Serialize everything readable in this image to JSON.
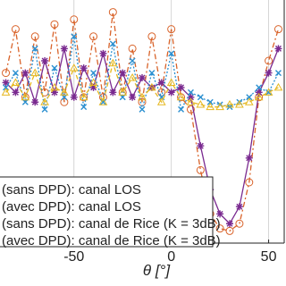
{
  "chart_data": {
    "type": "line",
    "x": [
      -85,
      -80,
      -75,
      -70,
      -65,
      -60,
      -55,
      -50,
      -45,
      -40,
      -35,
      -30,
      -25,
      -20,
      -15,
      -10,
      -5,
      0,
      5,
      10,
      15,
      20,
      25,
      30,
      35,
      40,
      45,
      50,
      55
    ],
    "series": [
      {
        "name": "(sans DPD): canal LOS",
        "color": "#d9632a",
        "marker": "circle",
        "dash": "6 3 2 3",
        "values": [
          70,
          88,
          60,
          85,
          62,
          90,
          58,
          92,
          60,
          85,
          60,
          95,
          62,
          80,
          58,
          85,
          62,
          88,
          60,
          55,
          30,
          12,
          6,
          5,
          8,
          25,
          60,
          75,
          88
        ]
      },
      {
        "name": "(avec DPD): canal LOS",
        "color": "#7a2a90",
        "marker": "star",
        "dash": "",
        "values": [
          66,
          62,
          70,
          58,
          75,
          62,
          80,
          60,
          72,
          64,
          78,
          62,
          70,
          60,
          68,
          64,
          66,
          62,
          64,
          60,
          40,
          22,
          12,
          8,
          15,
          35,
          62,
          70,
          80
        ]
      },
      {
        "name": "(sans DPD): canal de Rice (K = 3dB)",
        "color": "#2a8fd0",
        "marker": "x",
        "dash": "2 2",
        "values": [
          64,
          70,
          58,
          80,
          55,
          72,
          60,
          85,
          56,
          70,
          58,
          82,
          60,
          75,
          55,
          70,
          60,
          78,
          55,
          62,
          60,
          58,
          57,
          56,
          58,
          60,
          64,
          62,
          70
        ]
      },
      {
        "name": "(avec DPD): canal de Rice (K = 3dB)",
        "color": "#e6b820",
        "marker": "triangle",
        "dash": "5 3",
        "values": [
          62,
          66,
          60,
          70,
          58,
          64,
          62,
          72,
          60,
          66,
          58,
          74,
          62,
          68,
          60,
          64,
          58,
          66,
          60,
          58,
          57,
          56,
          56,
          57,
          57,
          58,
          60,
          62,
          64
        ]
      }
    ],
    "xlim": [
      -88,
      58
    ],
    "ylim": [
      0,
      100
    ],
    "xticks": [
      -50,
      0,
      50
    ],
    "xlabel": "θ [°]",
    "grid": true
  }
}
